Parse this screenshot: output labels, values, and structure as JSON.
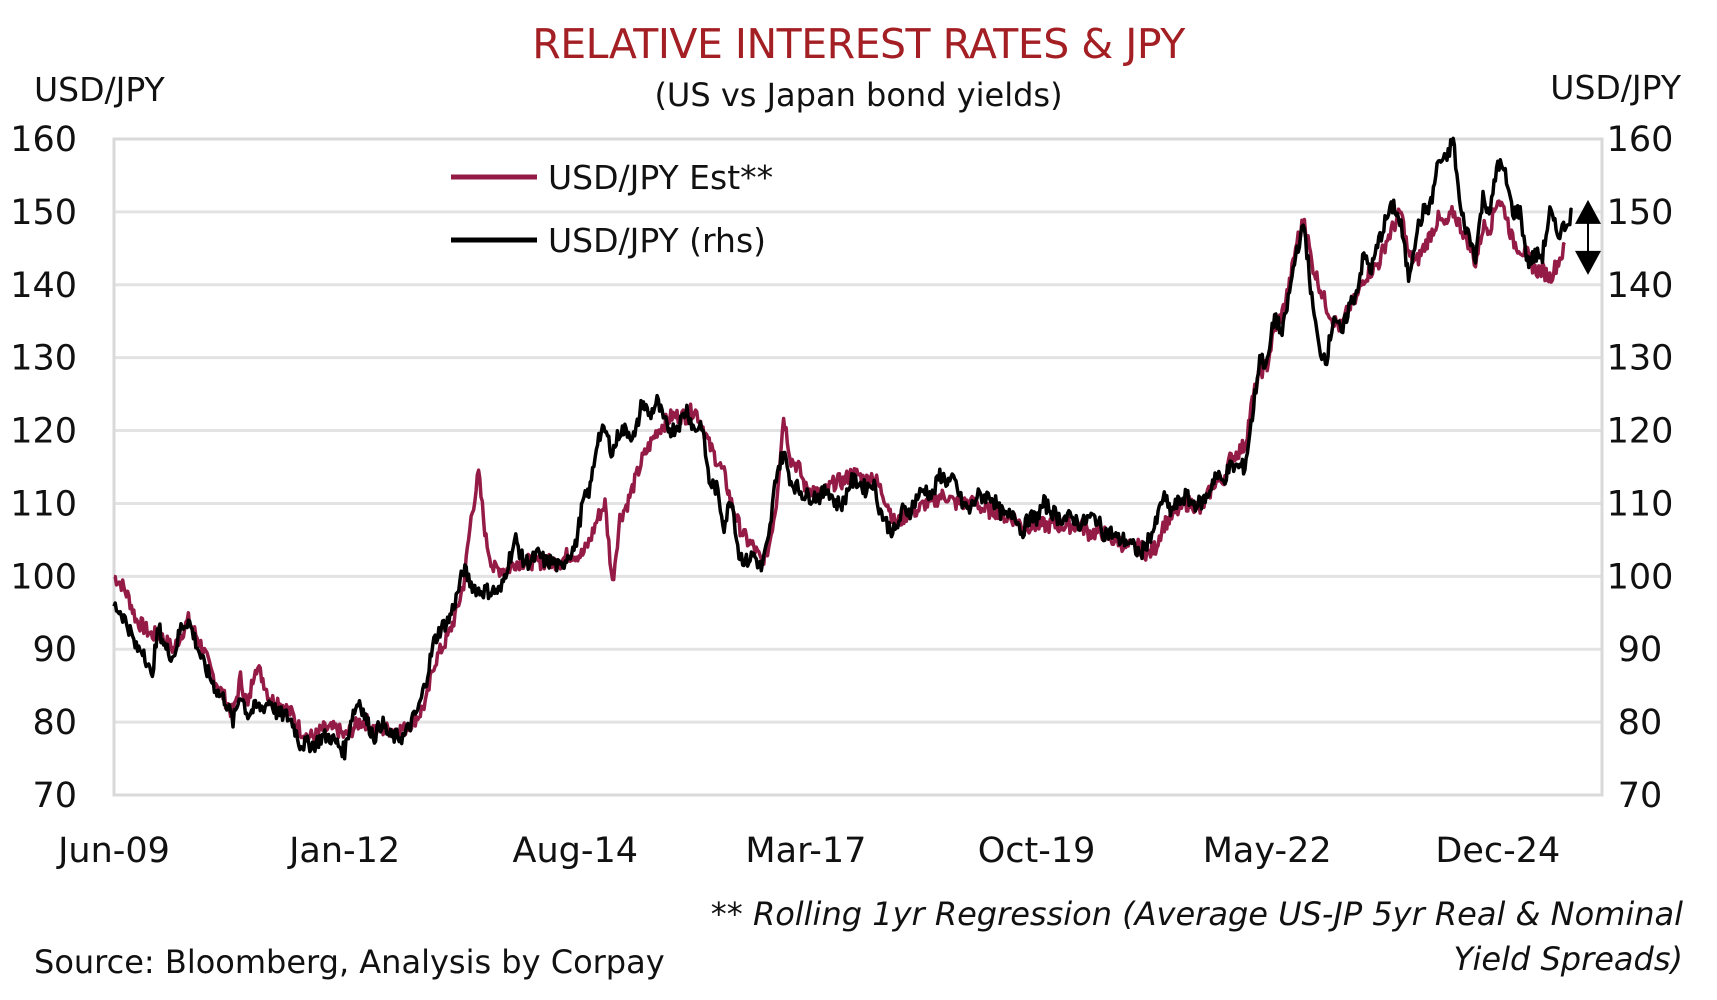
{
  "chart_data": {
    "type": "line",
    "title": "RELATIVE INTEREST RATES & JPY",
    "subtitle": "(US vs Japan bond yields)",
    "ylabel_left": "USD/JPY",
    "ylabel_right": "USD/JPY",
    "ylim": [
      70,
      160
    ],
    "yticks": [
      "70",
      "80",
      "90",
      "100",
      "110",
      "120",
      "130",
      "140",
      "150",
      "160"
    ],
    "x_start": "Jun-2009",
    "x_frequency": "monthly",
    "xlim_months": [
      0,
      200
    ],
    "xticks": [
      {
        "label": "Jun-09",
        "month": 0
      },
      {
        "label": "Jan-12",
        "month": 31
      },
      {
        "label": "Aug-14",
        "month": 62
      },
      {
        "label": "Mar-17",
        "month": 93
      },
      {
        "label": "Oct-19",
        "month": 124
      },
      {
        "label": "May-22",
        "month": 155
      },
      {
        "label": "Dec-24",
        "month": 186
      }
    ],
    "grid": true,
    "legend_position": "top-left",
    "series": [
      {
        "name": "USD/JPY Est**",
        "color": "#941b45",
        "values": [
          100,
          99,
          97,
          94,
          93,
          92,
          92,
          91,
          90,
          92,
          94,
          92,
          90,
          87,
          85,
          83,
          81,
          86,
          82,
          88,
          86,
          83,
          83,
          82,
          81,
          79,
          78,
          78,
          79,
          79,
          79,
          78,
          79,
          80,
          80,
          79,
          79,
          79,
          79,
          79,
          80,
          81,
          83,
          88,
          90,
          92,
          95,
          99,
          108,
          114,
          105,
          101,
          101,
          101,
          102,
          102,
          102,
          102,
          102,
          102,
          102,
          103,
          103,
          103,
          105,
          108,
          110,
          99,
          108,
          110,
          113,
          116,
          118,
          120,
          121,
          122,
          122,
          122,
          123,
          121,
          118,
          116,
          114,
          110,
          107,
          105,
          104,
          102,
          104,
          110,
          122,
          116,
          115,
          112,
          112,
          111,
          112,
          113,
          113,
          114,
          114,
          113,
          114,
          112,
          110,
          107,
          108,
          109,
          109,
          110,
          110,
          111,
          111,
          110,
          110,
          110,
          110,
          109,
          109,
          109,
          108,
          108,
          107,
          107,
          107,
          107,
          107,
          107,
          107,
          107,
          107,
          106,
          106,
          106,
          105,
          105,
          104,
          104,
          104,
          103,
          104,
          107,
          108,
          109,
          110,
          110,
          109,
          111,
          113,
          113,
          116,
          117,
          118,
          124,
          128,
          129,
          134,
          136,
          140,
          146,
          149,
          143,
          140,
          137,
          135,
          134,
          137,
          138,
          141,
          142,
          143,
          146,
          148,
          150,
          144,
          143,
          145,
          147,
          149,
          148,
          150,
          148,
          146,
          143,
          148,
          148,
          152,
          150,
          146,
          145,
          144,
          142,
          142,
          141,
          143,
          145
        ]
      },
      {
        "name": "USD/JPY (rhs)",
        "color": "#000000",
        "values": [
          96,
          95,
          93,
          90,
          90,
          86,
          93,
          90,
          89,
          93,
          94,
          91,
          88,
          86,
          84,
          83,
          80,
          84,
          81,
          82,
          82,
          83,
          81,
          81,
          80,
          77,
          77,
          77,
          78,
          78,
          77,
          76,
          81,
          83,
          80,
          78,
          80,
          78,
          78,
          78,
          80,
          82,
          86,
          91,
          93,
          94,
          97,
          101,
          99,
          98,
          98,
          98,
          98,
          102,
          105,
          102,
          102,
          103,
          102,
          102,
          101,
          103,
          104,
          110,
          112,
          119,
          120,
          117,
          120,
          120,
          119,
          124,
          122,
          124,
          121,
          120,
          121,
          123,
          120,
          121,
          113,
          112,
          107,
          111,
          103,
          102,
          103,
          101,
          105,
          114,
          117,
          113,
          112,
          111,
          111,
          111,
          112,
          110,
          110,
          113,
          113,
          112,
          113,
          109,
          107,
          106,
          109,
          109,
          111,
          112,
          111,
          114,
          113,
          113,
          110,
          109,
          111,
          111,
          111,
          109,
          108,
          109,
          106,
          108,
          108,
          110,
          109,
          108,
          108,
          108,
          107,
          108,
          108,
          106,
          106,
          105,
          105,
          104,
          103,
          105,
          107,
          111,
          109,
          110,
          111,
          110,
          110,
          111,
          114,
          113,
          115,
          115,
          115,
          122,
          130,
          129,
          136,
          133,
          139,
          145,
          148,
          138,
          131,
          130,
          136,
          133,
          137,
          139,
          144,
          142,
          146,
          149,
          151,
          148,
          141,
          147,
          150,
          151,
          157,
          157,
          160,
          150,
          147,
          144,
          152,
          150,
          157,
          155,
          150,
          150,
          143,
          144,
          144,
          150,
          147,
          148,
          150
        ]
      }
    ],
    "annotation": "double-headed arrow showing gap between USD/JPY and estimate (~143 to ~150)",
    "arrow_range": [
      143,
      150
    ]
  },
  "legend": {
    "est": "USD/JPY Est**",
    "actual": "USD/JPY (rhs)"
  },
  "footnote_line1": "** Rolling 1yr Regression (Average US-JP 5yr Real & Nominal",
  "footnote_line2": "Yield Spreads)",
  "source": "Source: Bloomberg, Analysis by Corpay"
}
